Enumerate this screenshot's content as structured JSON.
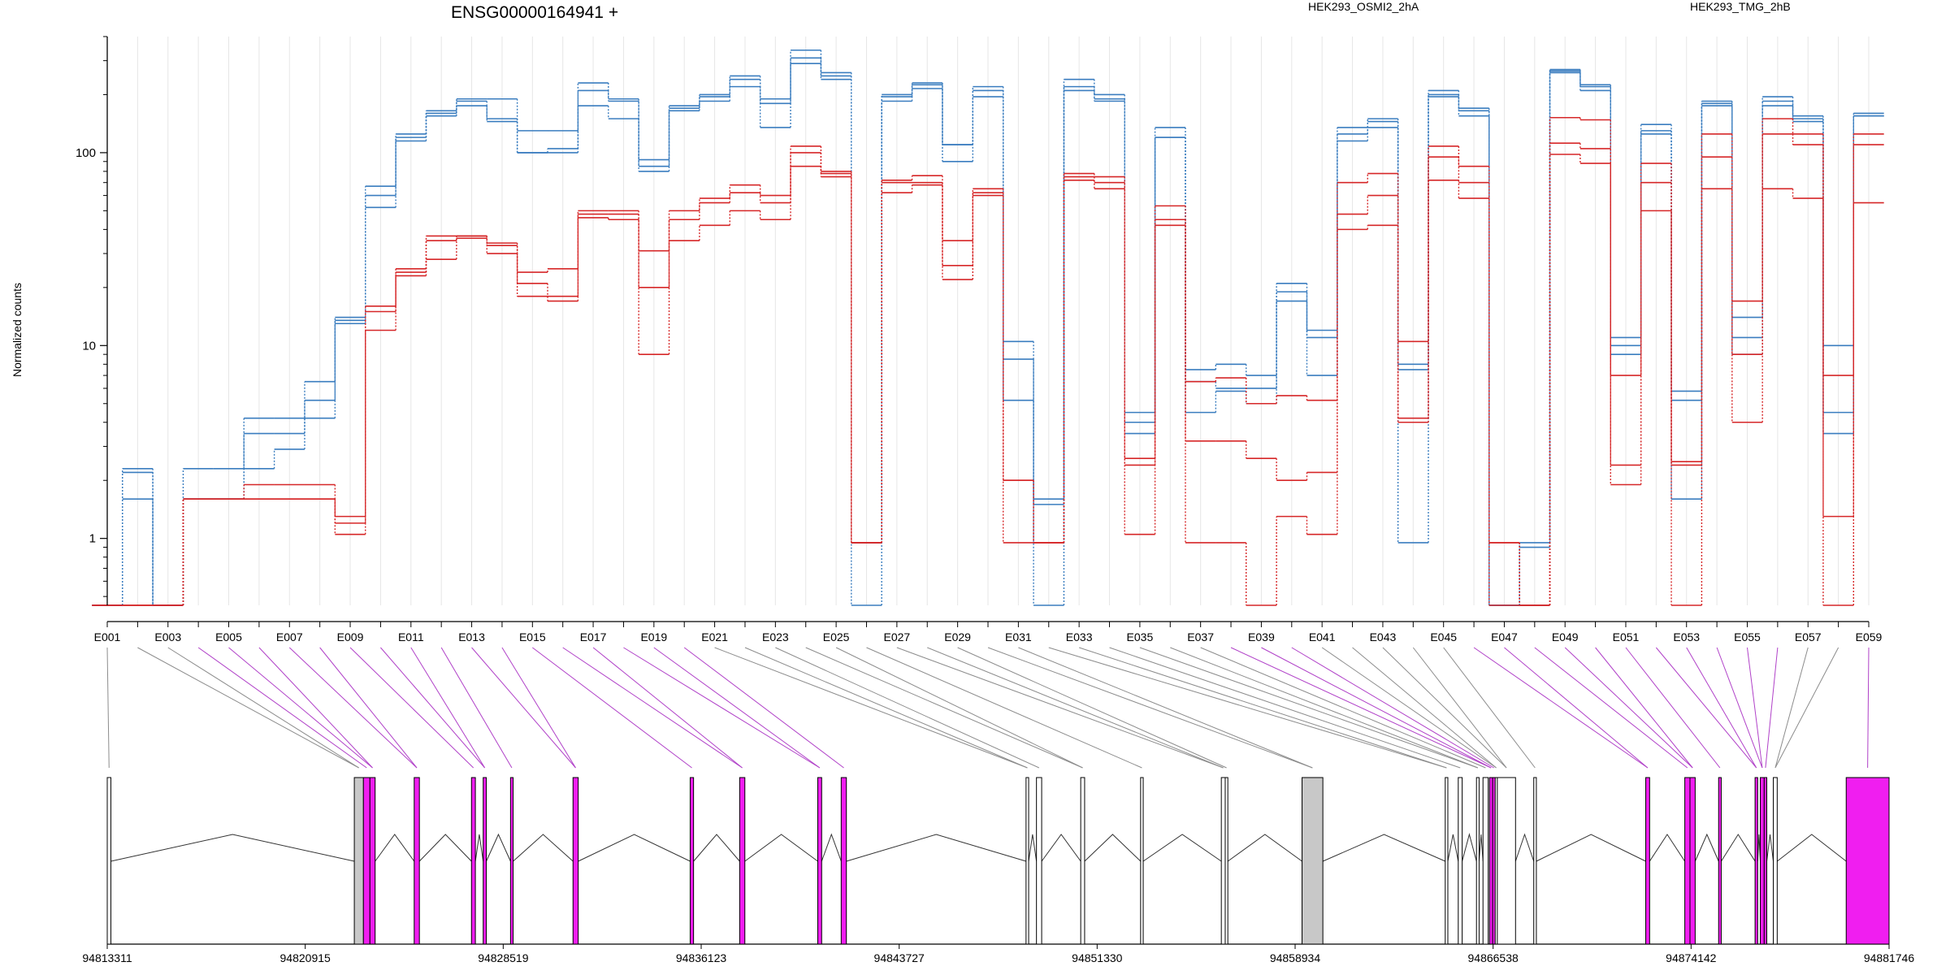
{
  "chart_data": {
    "type": "line",
    "title": "ENSG00000164941 +",
    "ylabel": "Normalized counts",
    "yscale": "log",
    "ylim": [
      0.45,
      400
    ],
    "yticks": [
      "1",
      "10",
      "100"
    ],
    "xlabels": [
      "E001",
      "E003",
      "E005",
      "E007",
      "E009",
      "E011",
      "E013",
      "E015",
      "E017",
      "E019",
      "E021",
      "E023",
      "E025",
      "E027",
      "E029",
      "E031",
      "E033",
      "E035",
      "E037",
      "E039",
      "E041",
      "E043",
      "E045",
      "E047",
      "E049",
      "E051",
      "E053",
      "E055",
      "E057",
      "E059"
    ],
    "exons": [
      "E001",
      "E002",
      "E003",
      "E004",
      "E005",
      "E006",
      "E007",
      "E008",
      "E009",
      "E010",
      "E011",
      "E012",
      "E013",
      "E014",
      "E015",
      "E016",
      "E017",
      "E018",
      "E019",
      "E020",
      "E021",
      "E022",
      "E023",
      "E024",
      "E025",
      "E026",
      "E027",
      "E028",
      "E029",
      "E030",
      "E031",
      "E032",
      "E033",
      "E034",
      "E035",
      "E036",
      "E037",
      "E038",
      "E039",
      "E040",
      "E041",
      "E042",
      "E043",
      "E044",
      "E045",
      "E046",
      "E047",
      "E048",
      "E049",
      "E050",
      "E051",
      "E052",
      "E053",
      "E054",
      "E055",
      "E056",
      "E057",
      "E058",
      "E059"
    ],
    "legend": [
      {
        "name": "HEK293_OSMI2_2hA",
        "color": "#d62728"
      },
      {
        "name": "HEK293_TMG_2hB",
        "color": "#3a7dbf"
      }
    ],
    "series": [
      {
        "group": "HEK293_TMG_2hB",
        "color": "#3a7dbf",
        "values": [
          0.45,
          2.3,
          0.45,
          2.3,
          2.3,
          4.2,
          4.2,
          6.5,
          14,
          67,
          125,
          165,
          190,
          190,
          130,
          130,
          230,
          190,
          92,
          175,
          200,
          250,
          190,
          340,
          260,
          0.95,
          200,
          230,
          110,
          220,
          10.5,
          1.6,
          240,
          200,
          4.5,
          135,
          7.5,
          8,
          7,
          21,
          12,
          135,
          150,
          8,
          210,
          170,
          0.45,
          0.95,
          270,
          225,
          11,
          140,
          5.8,
          185,
          14,
          195,
          155,
          10,
          160
        ]
      },
      {
        "group": "HEK293_TMG_2hB",
        "color": "#3a7dbf",
        "values": [
          0.45,
          2.2,
          0.45,
          1.6,
          1.6,
          3.5,
          3.5,
          5.2,
          13.5,
          60,
          120,
          160,
          185,
          150,
          100,
          105,
          210,
          185,
          85,
          170,
          195,
          240,
          180,
          310,
          250,
          0.95,
          195,
          225,
          110,
          210,
          8.5,
          1.5,
          220,
          190,
          4,
          120,
          6.5,
          6,
          6,
          19,
          11,
          125,
          145,
          7.5,
          200,
          165,
          0.45,
          0.9,
          265,
          220,
          10,
          130,
          5.2,
          180,
          11,
          185,
          150,
          4.5,
          155
        ]
      },
      {
        "group": "HEK293_TMG_2hB",
        "color": "#3a7dbf",
        "values": [
          0.45,
          1.6,
          0.45,
          1.6,
          1.6,
          2.3,
          2.9,
          4.2,
          13,
          52,
          115,
          155,
          175,
          145,
          100,
          100,
          175,
          150,
          80,
          165,
          185,
          220,
          135,
          290,
          240,
          0.45,
          185,
          215,
          90,
          195,
          5.2,
          0.45,
          210,
          185,
          3.5,
          120,
          4.5,
          5.8,
          5,
          17,
          7,
          115,
          135,
          0.95,
          195,
          155,
          0.45,
          0.45,
          260,
          210,
          9,
          125,
          1.6,
          175,
          9,
          175,
          145,
          3.5,
          155
        ]
      },
      {
        "group": "HEK293_OSMI2_2hA",
        "color": "#d62728",
        "values": [
          0.45,
          0.45,
          0.45,
          1.6,
          1.6,
          1.9,
          1.9,
          1.9,
          1.3,
          16,
          25,
          37,
          37,
          34,
          24,
          25,
          50,
          50,
          31,
          50,
          58,
          68,
          60,
          108,
          80,
          0.95,
          72,
          76,
          35,
          65,
          2.0,
          0.95,
          78,
          75,
          2.6,
          53,
          6.5,
          6.8,
          5,
          5.5,
          5.2,
          70,
          78,
          10.5,
          108,
          85,
          0.95,
          0.45,
          152,
          148,
          7,
          88,
          2.5,
          125,
          17,
          150,
          125,
          7,
          125
        ]
      },
      {
        "group": "HEK293_OSMI2_2hA",
        "color": "#d62728",
        "values": [
          0.45,
          0.45,
          0.45,
          1.6,
          1.6,
          1.6,
          1.6,
          1.6,
          1.2,
          15,
          24,
          35,
          37,
          33,
          21,
          18,
          48,
          48,
          20,
          45,
          55,
          62,
          55,
          100,
          78,
          0.95,
          70,
          70,
          26,
          62,
          2.0,
          0.95,
          75,
          70,
          2.4,
          45,
          3.2,
          3.2,
          2.6,
          2,
          2.2,
          48,
          60,
          4.2,
          95,
          70,
          0.95,
          0.45,
          112,
          105,
          2.4,
          70,
          2.4,
          95,
          9,
          125,
          110,
          1.3,
          110
        ]
      },
      {
        "group": "HEK293_OSMI2_2hA",
        "color": "#d62728",
        "values": [
          0.45,
          0.45,
          0.45,
          1.6,
          1.6,
          1.6,
          1.6,
          1.6,
          1.05,
          12,
          23,
          28,
          36,
          30,
          18,
          17,
          46,
          45,
          9,
          35,
          42,
          50,
          45,
          85,
          75,
          0.95,
          62,
          68,
          22,
          60,
          0.95,
          0.95,
          72,
          65,
          1.05,
          42,
          0.95,
          0.95,
          0.45,
          1.3,
          1.05,
          40,
          42,
          4,
          72,
          58,
          0.45,
          0.45,
          98,
          88,
          1.9,
          50,
          0.45,
          65,
          4,
          65,
          58,
          0.45,
          55
        ]
      }
    ],
    "gene_model": {
      "coordinates": [
        "94813311",
        "94820915",
        "94828519",
        "94836123",
        "94843727",
        "94851330",
        "94858934",
        "94866538",
        "94874142",
        "94881746"
      ],
      "exon_colors": {
        "highlight": "#f01ef0",
        "normal": "#ffffff",
        "shaded": "#c8c8c8"
      },
      "exons": [
        {
          "start": 94813311,
          "end": 94813450,
          "style": "normal"
        },
        {
          "start": 94822800,
          "end": 94823150,
          "style": "shaded"
        },
        {
          "start": 94823150,
          "end": 94823400,
          "style": "highlight"
        },
        {
          "start": 94823400,
          "end": 94823600,
          "style": "highlight"
        },
        {
          "start": 94825100,
          "end": 94825300,
          "style": "highlight"
        },
        {
          "start": 94827300,
          "end": 94827450,
          "style": "highlight"
        },
        {
          "start": 94827750,
          "end": 94827870,
          "style": "highlight"
        },
        {
          "start": 94828800,
          "end": 94828900,
          "style": "highlight"
        },
        {
          "start": 94831200,
          "end": 94831400,
          "style": "highlight"
        },
        {
          "start": 94835700,
          "end": 94835830,
          "style": "highlight"
        },
        {
          "start": 94837600,
          "end": 94837800,
          "style": "highlight"
        },
        {
          "start": 94840600,
          "end": 94840750,
          "style": "highlight"
        },
        {
          "start": 94841500,
          "end": 94841700,
          "style": "highlight"
        },
        {
          "start": 94848600,
          "end": 94848700,
          "style": "normal"
        },
        {
          "start": 94849000,
          "end": 94849200,
          "style": "normal"
        },
        {
          "start": 94850700,
          "end": 94850850,
          "style": "normal"
        },
        {
          "start": 94853000,
          "end": 94853100,
          "style": "normal"
        },
        {
          "start": 94856100,
          "end": 94856250,
          "style": "normal"
        },
        {
          "start": 94856250,
          "end": 94856350,
          "style": "normal"
        },
        {
          "start": 94859200,
          "end": 94860000,
          "style": "shaded"
        },
        {
          "start": 94864700,
          "end": 94864800,
          "style": "normal"
        },
        {
          "start": 94865200,
          "end": 94865350,
          "style": "normal"
        },
        {
          "start": 94865900,
          "end": 94866000,
          "style": "normal"
        },
        {
          "start": 94866150,
          "end": 94866350,
          "style": "normal"
        },
        {
          "start": 94866400,
          "end": 94866520,
          "style": "highlight"
        },
        {
          "start": 94866520,
          "end": 94866620,
          "style": "highlight"
        },
        {
          "start": 94866620,
          "end": 94866700,
          "style": "normal"
        },
        {
          "start": 94866700,
          "end": 94867400,
          "style": "normal"
        },
        {
          "start": 94868100,
          "end": 94868200,
          "style": "normal"
        },
        {
          "start": 94872400,
          "end": 94872550,
          "style": "highlight"
        },
        {
          "start": 94873900,
          "end": 94874100,
          "style": "highlight"
        },
        {
          "start": 94874100,
          "end": 94874300,
          "style": "highlight"
        },
        {
          "start": 94875200,
          "end": 94875300,
          "style": "highlight"
        },
        {
          "start": 94876600,
          "end": 94876700,
          "style": "highlight"
        },
        {
          "start": 94876800,
          "end": 94876950,
          "style": "highlight"
        },
        {
          "start": 94876950,
          "end": 94877050,
          "style": "highlight"
        },
        {
          "start": 94877300,
          "end": 94877450,
          "style": "normal"
        },
        {
          "start": 94880100,
          "end": 94881746,
          "style": "highlight"
        }
      ]
    }
  }
}
